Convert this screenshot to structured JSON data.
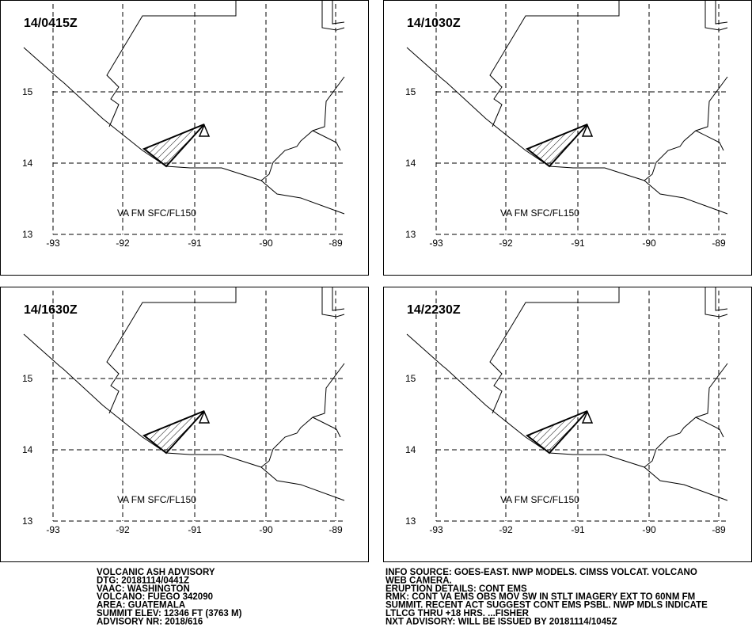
{
  "panels": [
    {
      "time": "14/0415Z",
      "layer": "VA FM SFC/FL150"
    },
    {
      "time": "14/1030Z",
      "layer": "VA FM SFC/FL150"
    },
    {
      "time": "14/1630Z",
      "layer": "VA FM SFC/FL150"
    },
    {
      "time": "14/2230Z",
      "layer": "VA FM SFC/FL150"
    }
  ],
  "lat_ticks": [
    15,
    14,
    13
  ],
  "lon_ticks": [
    -93,
    -92,
    -91,
    -90,
    -89
  ],
  "advisory_left": [
    "VOLCANIC ASH ADVISORY",
    "DTG: 20181114/0441Z",
    "VAAC: WASHINGTON",
    "VOLCANO: FUEGO 342090",
    "AREA: GUATEMALA",
    "SUMMIT ELEV: 12346 FT (3763 M)",
    "ADVISORY NR: 2018/616"
  ],
  "advisory_right": [
    "INFO SOURCE: GOES-EAST. NWP MODELS. CIMSS VOLCAT. VOLCANO",
    "WEB CAMERA.",
    "ERUPTION DETAILS: CONT EMS",
    "RMK: CONT VA EMS OBS MOV SW IN STLT IMAGERY EXT TO 60NM FM",
    "SUMMIT. RECENT ACT SUGGEST CONT EMS PSBL. NWP MDLS INDICATE",
    "LTLCG THRU +18 HRS. ...FISHER",
    "NXT ADVISORY: WILL BE ISSUED BY 20181114/1045Z"
  ]
}
